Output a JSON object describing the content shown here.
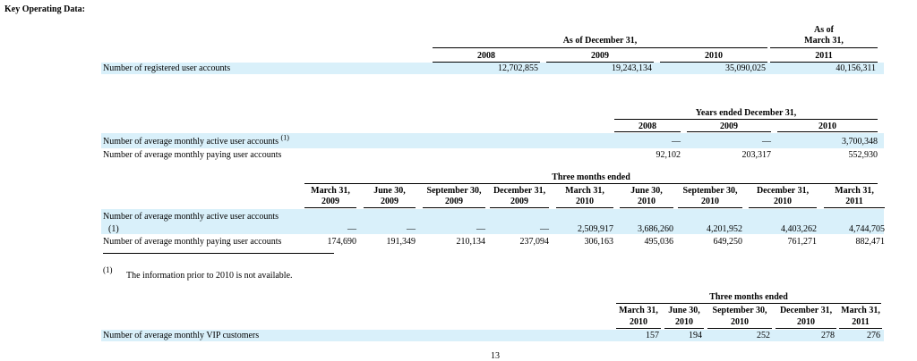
{
  "heading": "Key Operating Data:",
  "section1": {
    "header_group": "As of December 31,",
    "header_asof_line1": "As of",
    "header_asof_line2": "March 31,",
    "years": [
      "2008",
      "2009",
      "2010",
      "2011"
    ],
    "row_label": "Number of registered user accounts",
    "values": [
      "12,702,855",
      "19,243,134",
      "35,090,025",
      "40,156,311"
    ]
  },
  "section2": {
    "header_group": "Years ended December 31,",
    "years": [
      "2008",
      "2009",
      "2010"
    ],
    "rows": [
      {
        "label": "Number of average monthly active user accounts",
        "note": "(1)",
        "values": [
          "—",
          "—",
          "3,700,348"
        ]
      },
      {
        "label": "Number of average monthly paying user accounts",
        "values": [
          "92,102",
          "203,317",
          "552,930"
        ]
      }
    ]
  },
  "section3": {
    "header_group": "Three months ended",
    "columns": [
      {
        "l1": "March 31,",
        "l2": "2009"
      },
      {
        "l1": "June 30,",
        "l2": "2009"
      },
      {
        "l1": "September 30,",
        "l2": "2009"
      },
      {
        "l1": "December 31,",
        "l2": "2009"
      },
      {
        "l1": "March 31,",
        "l2": "2010"
      },
      {
        "l1": "June 30,",
        "l2": "2010"
      },
      {
        "l1": "September 30,",
        "l2": "2010"
      },
      {
        "l1": "December 31,",
        "l2": "2010"
      },
      {
        "l1": "March 31,",
        "l2": "2011"
      }
    ],
    "active_label": "Number of average monthly active user accounts",
    "active_note": "(1)",
    "active_values": [
      "—",
      "—",
      "—",
      "—",
      "2,509,917",
      "3,686,260",
      "4,201,952",
      "4,403,262",
      "4,744,705"
    ],
    "paying_label": "Number of average monthly paying user accounts",
    "paying_values": [
      "174,690",
      "191,349",
      "210,134",
      "237,094",
      "306,163",
      "495,036",
      "649,250",
      "761,271",
      "882,471"
    ]
  },
  "footnote": {
    "marker": "(1)",
    "text": "The information prior to 2010 is not available."
  },
  "section4": {
    "header_group": "Three months ended",
    "columns": [
      {
        "l1": "March 31,",
        "l2": "2010"
      },
      {
        "l1": "June 30,",
        "l2": "2010"
      },
      {
        "l1": "September 30,",
        "l2": "2010"
      },
      {
        "l1": "December 31,",
        "l2": "2010"
      },
      {
        "l1": "March 31,",
        "l2": "2011"
      }
    ],
    "row_label": "Number of average monthly VIP customers",
    "values": [
      "157",
      "194",
      "252",
      "278",
      "276"
    ]
  },
  "page_number": "13"
}
